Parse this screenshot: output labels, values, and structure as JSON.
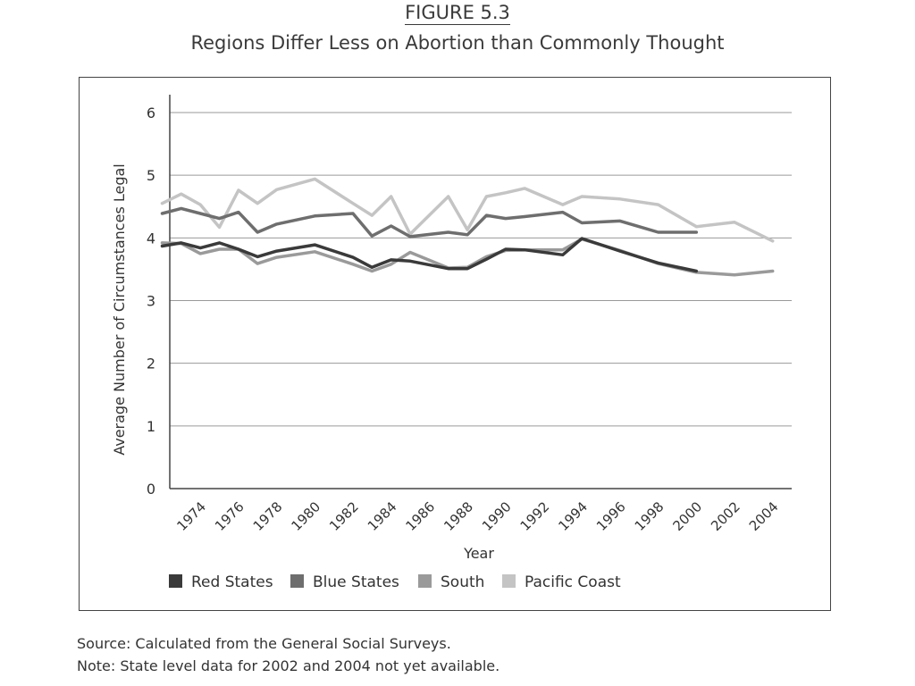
{
  "figure_label": "FIGURE 5.3",
  "chart_data": {
    "type": "line",
    "title": "Regions Differ Less on Abortion than Commonly Thought",
    "xlabel": "Year",
    "ylabel": "Average Number of Circumstances Legal",
    "ylim": [
      0,
      6
    ],
    "yticks": [
      0,
      1,
      2,
      3,
      4,
      5,
      6
    ],
    "xlim": [
      1972.4,
      2005
    ],
    "xticks": [
      1974,
      1976,
      1978,
      1980,
      1982,
      1984,
      1986,
      1988,
      1990,
      1992,
      1994,
      1996,
      1998,
      2000,
      2002,
      2004
    ],
    "grid": "horizontal",
    "legend_position": "bottom",
    "series": [
      {
        "name": "Red States",
        "color": "#3a3a3a",
        "x": [
          1972,
          1973,
          1974,
          1975,
          1976,
          1977,
          1978,
          1980,
          1982,
          1983,
          1984,
          1985,
          1987,
          1988,
          1989,
          1990,
          1991,
          1993,
          1994,
          1996,
          1998,
          2000
        ],
        "y": [
          3.87,
          3.92,
          3.84,
          3.92,
          3.82,
          3.7,
          3.79,
          3.89,
          3.69,
          3.53,
          3.65,
          3.63,
          3.51,
          3.51,
          3.66,
          3.82,
          3.81,
          3.73,
          3.99,
          3.79,
          3.6,
          3.47
        ]
      },
      {
        "name": "Blue States",
        "color": "#6e6e6e",
        "x": [
          1972,
          1973,
          1974,
          1975,
          1976,
          1977,
          1978,
          1980,
          1982,
          1983,
          1984,
          1985,
          1987,
          1988,
          1989,
          1990,
          1991,
          1993,
          1994,
          1996,
          1998,
          2000
        ],
        "y": [
          4.39,
          4.47,
          4.39,
          4.31,
          4.41,
          4.09,
          4.22,
          4.35,
          4.39,
          4.03,
          4.19,
          4.02,
          4.09,
          4.05,
          4.36,
          4.31,
          4.34,
          4.41,
          4.24,
          4.27,
          4.09,
          4.09
        ]
      },
      {
        "name": "South",
        "color": "#9a9a9a",
        "x": [
          1972,
          1973,
          1974,
          1975,
          1976,
          1977,
          1978,
          1980,
          1982,
          1983,
          1984,
          1985,
          1987,
          1988,
          1989,
          1990,
          1991,
          1993,
          1994,
          1996,
          1998,
          2000,
          2002,
          2004
        ],
        "y": [
          3.92,
          3.91,
          3.75,
          3.82,
          3.82,
          3.59,
          3.69,
          3.78,
          3.58,
          3.47,
          3.58,
          3.77,
          3.52,
          3.53,
          3.7,
          3.8,
          3.81,
          3.81,
          3.98,
          3.8,
          3.59,
          3.45,
          3.41,
          3.47
        ]
      },
      {
        "name": "Pacific Coast",
        "color": "#c4c4c4",
        "x": [
          1972,
          1973,
          1974,
          1975,
          1976,
          1977,
          1978,
          1980,
          1982,
          1983,
          1984,
          1985,
          1987,
          1988,
          1989,
          1990,
          1991,
          1993,
          1994,
          1996,
          1998,
          2000,
          2002,
          2004
        ],
        "y": [
          4.55,
          4.7,
          4.53,
          4.17,
          4.76,
          4.55,
          4.77,
          4.94,
          4.55,
          4.36,
          4.66,
          4.06,
          4.66,
          4.13,
          4.66,
          4.72,
          4.79,
          4.53,
          4.66,
          4.62,
          4.53,
          4.18,
          4.25,
          3.95
        ]
      }
    ]
  },
  "footnotes": {
    "source": "Source: Calculated from the General Social Surveys.",
    "note": "Note: State level data for 2002 and 2004 not yet available."
  }
}
